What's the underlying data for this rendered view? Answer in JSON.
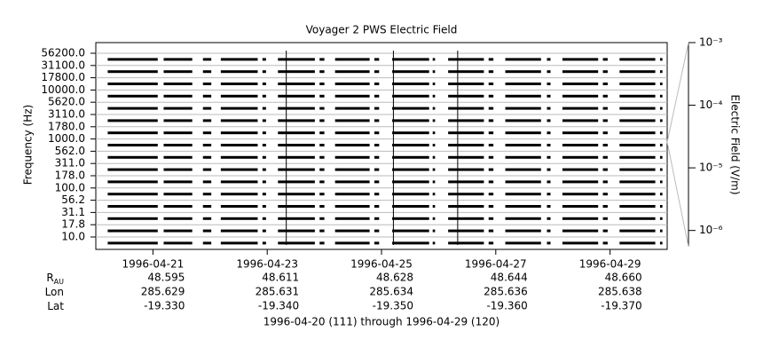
{
  "chart_data": {
    "type": "stack",
    "title": "Voyager 2 PWS Electric Field",
    "ylabel": "Frequency (Hz)",
    "channels": [
      "56200.0",
      "31100.0",
      "17800.0",
      "10000.0",
      "5620.0",
      "3110.0",
      "1780.0",
      "1000.0",
      "562.0",
      "311.0",
      "178.0",
      "100.0",
      "56.2",
      "31.1",
      "17.8",
      "10.0"
    ],
    "xlim": [
      "1996-04-20T00:00",
      "1996-04-30T00:00"
    ],
    "xticks": [
      "1996-04-21",
      "1996-04-23",
      "1996-04-25",
      "1996-04-27",
      "1996-04-29"
    ],
    "y2label": "Electric Field (V/m)",
    "y2scale": "log",
    "y2lim": [
      5.5e-07,
      0.001
    ],
    "y2ticks": [
      {
        "value": 0.001,
        "label": "10⁻³"
      },
      {
        "value": 0.0001,
        "label": "10⁻⁴"
      },
      {
        "value": 1e-05,
        "label": "10⁻⁵"
      },
      {
        "value": 1e-06,
        "label": "10⁻⁶"
      }
    ],
    "color": "#000000",
    "grid": true,
    "segments": [
      [
        "1996-04-20T05:00",
        "1996-04-21T02:00"
      ],
      [
        "1996-04-21T04:30",
        "1996-04-21T16:30"
      ],
      [
        "1996-04-21T21:00",
        "1996-04-22T00:30"
      ],
      [
        "1996-04-22T04:30",
        "1996-04-22T20:00"
      ],
      [
        "1996-04-22T22:00",
        "1996-04-22T23:30"
      ],
      [
        "1996-04-23T04:30",
        "1996-04-23T20:00"
      ],
      [
        "1996-04-23T22:00",
        "1996-04-24T00:00"
      ],
      [
        "1996-04-24T04:30",
        "1996-04-24T19:00"
      ],
      [
        "1996-04-24T21:00",
        "1996-04-24T23:00"
      ],
      [
        "1996-04-25T04:30",
        "1996-04-25T20:00"
      ],
      [
        "1996-04-25T21:30",
        "1996-04-25T22:30"
      ],
      [
        "1996-04-26T04:00",
        "1996-04-26T19:00"
      ],
      [
        "1996-04-26T21:00",
        "1996-04-26T23:00"
      ],
      [
        "1996-04-27T04:00",
        "1996-04-27T19:00"
      ],
      [
        "1996-04-27T21:30",
        "1996-04-27T23:00"
      ],
      [
        "1996-04-28T04:00",
        "1996-04-28T19:00"
      ],
      [
        "1996-04-28T21:00",
        "1996-04-28T23:00"
      ],
      [
        "1996-04-29T04:00",
        "1996-04-29T19:00"
      ],
      [
        "1996-04-29T21:00",
        "1996-04-29T22:00"
      ]
    ],
    "spikes": [
      "1996-04-23T08:00",
      "1996-04-25T05:00",
      "1996-04-26T08:00"
    ],
    "ephemeris": [
      {
        "label": "R",
        "sub": "AU",
        "values": [
          "48.595",
          "48.611",
          "48.628",
          "48.644",
          "48.660"
        ]
      },
      {
        "label": "Lon",
        "values": [
          "285.629",
          "285.631",
          "285.634",
          "285.636",
          "285.638"
        ]
      },
      {
        "label": "Lat",
        "values": [
          "-19.330",
          "-19.340",
          "-19.350",
          "-19.360",
          "-19.370"
        ]
      }
    ],
    "footer": "1996-04-20 (111) through 1996-04-29 (120)"
  }
}
